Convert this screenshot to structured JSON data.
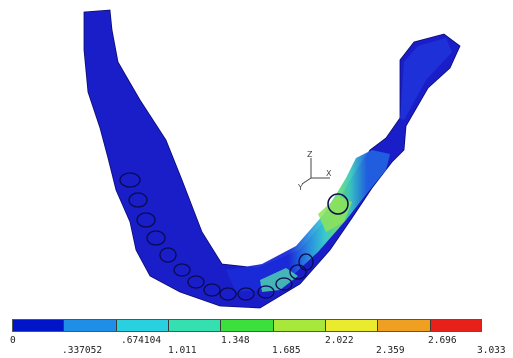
{
  "model_view": {
    "triad": {
      "y_label": "Y",
      "z_label": "Z",
      "x_label": "X"
    }
  },
  "legend": {
    "colors": [
      "#0014c8",
      "#1e8ee6",
      "#28d0e0",
      "#35e0b0",
      "#3ce03c",
      "#a8e83a",
      "#eaea2e",
      "#f0a020",
      "#e8201a"
    ],
    "labels_top": [
      "0",
      ".674104",
      "1.348",
      "2.022",
      "2.696"
    ],
    "labels_bottom": [
      ".337052",
      "1.011",
      "1.685",
      "2.359",
      "3.033"
    ]
  }
}
